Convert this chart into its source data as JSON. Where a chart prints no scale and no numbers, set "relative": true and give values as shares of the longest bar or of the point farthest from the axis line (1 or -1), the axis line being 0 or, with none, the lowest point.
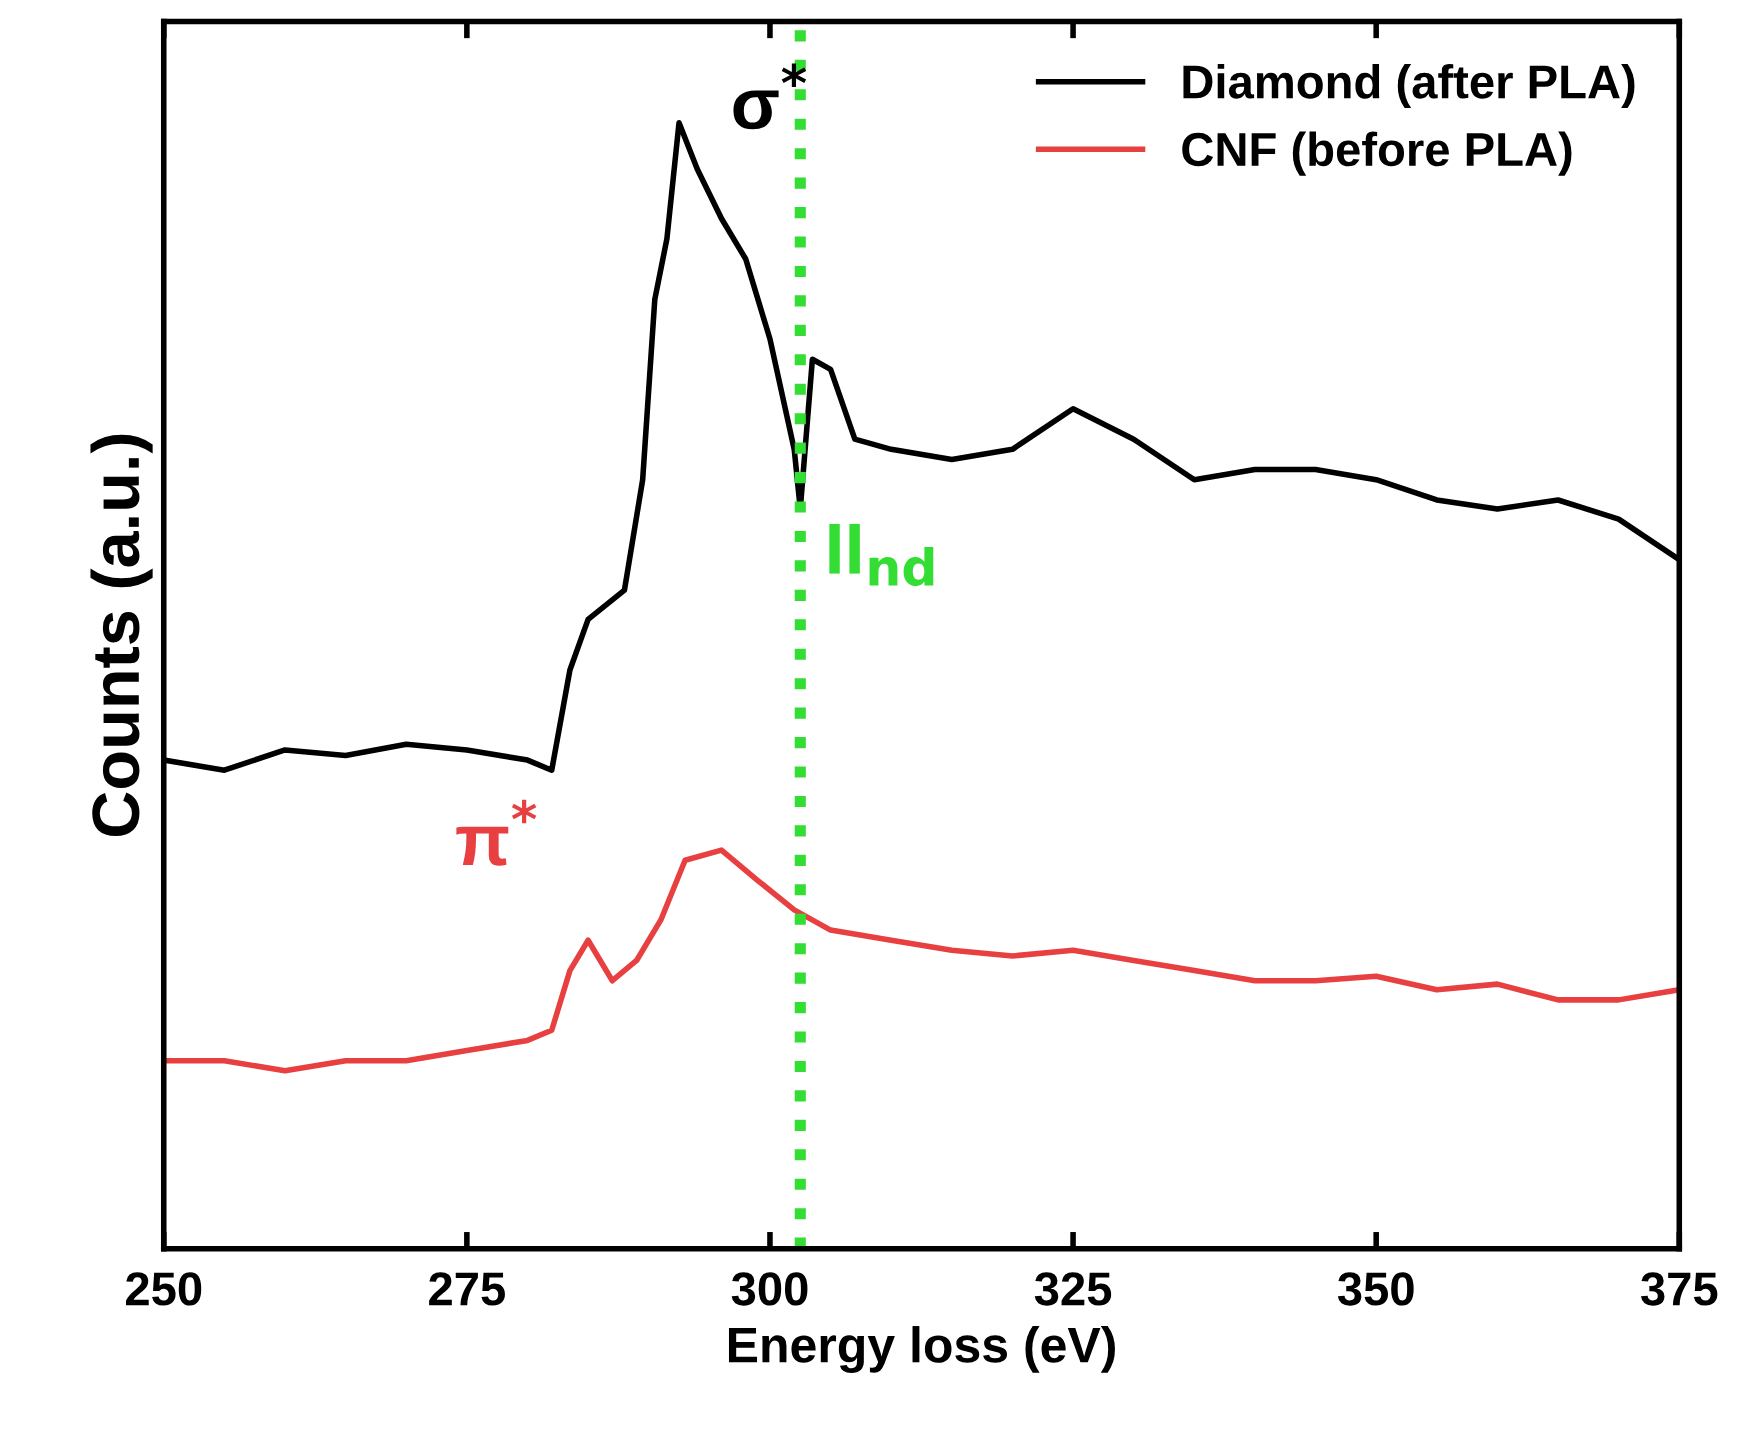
{
  "chart_data": {
    "type": "line",
    "relative": true,
    "xlabel": "Energy loss (eV)",
    "ylabel": "Counts (a.u.)",
    "xlim": [
      250,
      375
    ],
    "xticks": [
      250,
      275,
      300,
      325,
      350,
      375
    ],
    "tick_labels": "x",
    "grid": false,
    "legend": "top right",
    "marker": "none",
    "line_style": "solid",
    "series": [
      {
        "name": "Diamond (after PLA)",
        "color": "#000000",
        "x": [
          250,
          255,
          260,
          265,
          270,
          275,
          280,
          282,
          283.5,
          285,
          288,
          289.5,
          290.5,
          291.5,
          292.5,
          294,
          296,
          298,
          300,
          302,
          302.5,
          303.5,
          305,
          307,
          310,
          315,
          320,
          325,
          330,
          335,
          340,
          345,
          350,
          355,
          360,
          365,
          370,
          375
        ],
        "values": [
          0.434,
          0.425,
          0.443,
          0.438,
          0.448,
          0.443,
          0.434,
          0.425,
          0.514,
          0.559,
          0.585,
          0.683,
          0.843,
          0.897,
          1.0,
          0.959,
          0.915,
          0.879,
          0.808,
          0.71,
          0.657,
          0.79,
          0.781,
          0.719,
          0.71,
          0.701,
          0.71,
          0.746,
          0.719,
          0.683,
          0.692,
          0.692,
          0.683,
          0.665,
          0.657,
          0.665,
          0.648,
          0.612
        ]
      },
      {
        "name": "CNF (before PLA)",
        "color": "#e84040",
        "x": [
          250,
          255,
          260,
          265,
          270,
          275,
          280,
          282,
          283.5,
          285,
          287,
          289,
          291,
          293,
          296,
          299,
          302,
          305,
          310,
          315,
          320,
          325,
          330,
          335,
          340,
          345,
          350,
          355,
          360,
          365,
          370,
          375
        ],
        "values": [
          0.167,
          0.167,
          0.158,
          0.167,
          0.167,
          0.176,
          0.185,
          0.194,
          0.247,
          0.274,
          0.238,
          0.256,
          0.292,
          0.345,
          0.354,
          0.327,
          0.301,
          0.283,
          0.274,
          0.265,
          0.26,
          0.265,
          0.256,
          0.247,
          0.238,
          0.238,
          0.242,
          0.23,
          0.235,
          0.221,
          0.221,
          0.23
        ]
      }
    ],
    "ref_lines": [
      {
        "axis": "x",
        "value": 302.5,
        "label": "II$_{nd}$",
        "color": "#33dd33",
        "line_style": "dotted"
      }
    ],
    "annotations": [
      "σ$^{*}$",
      "π$^{*}$"
    ]
  }
}
